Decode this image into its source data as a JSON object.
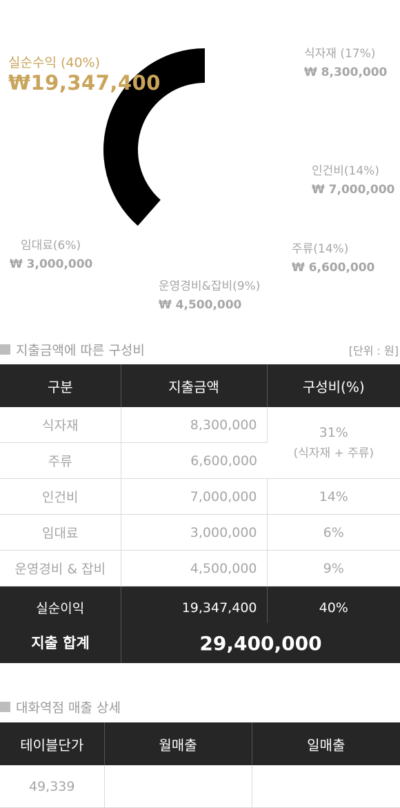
{
  "chart_data": {
    "type": "pie",
    "categories": [
      "실순수익 (40%)",
      "식자재 (17%)",
      "인건비(14%)",
      "주류(14%)",
      "운영경비&잡비(9%)",
      "임대료(6%)"
    ],
    "values": [
      19347400,
      8300000,
      7000000,
      6600000,
      4500000,
      3000000
    ],
    "labels": {
      "profit": {
        "name": "실순수익 (40%)",
        "amount": "₩19,347,400"
      },
      "food": {
        "name": "식자재 (17%)",
        "amount": "₩ 8,300,000"
      },
      "labor": {
        "name": "인건비(14%)",
        "amount": "₩ 7,000,000"
      },
      "liquor": {
        "name": "주류(14%)",
        "amount": "₩ 6,600,000"
      },
      "ops": {
        "name": "운영경비&잡비(9%)",
        "amount": "₩ 4,500,000"
      },
      "rent": {
        "name": "임대료(6%)",
        "amount": "₩ 3,000,000"
      }
    },
    "colors": {
      "profit_arc": "#000000",
      "profit_label": "#c9a45a"
    }
  },
  "expense_section": {
    "title": "지출금액에 따른 구성비",
    "unit": "[단위 : 원]",
    "headers": [
      "구분",
      "지출금액",
      "구성비(%)"
    ],
    "rows": [
      {
        "name": "식자재",
        "amount": "8,300,000"
      },
      {
        "name": "주류",
        "amount": "6,600,000"
      },
      {
        "name": "인건비",
        "amount": "7,000,000",
        "ratio": "14%"
      },
      {
        "name": "임대료",
        "amount": "3,000,000",
        "ratio": "6%"
      },
      {
        "name": "운영경비 & 잡비",
        "amount": "4,500,000",
        "ratio": "9%"
      }
    ],
    "combined_ratio": "31%",
    "combined_note": "(식자재 + 주류)",
    "profit_row": {
      "name": "실순이익",
      "amount": "19,347,400",
      "ratio": "40%"
    },
    "total": {
      "label": "지출 합계",
      "value": "29,400,000"
    }
  },
  "sales_section": {
    "title": "대화역점 매출 상세",
    "headers": [
      "테이블단가",
      "월매출",
      "일매출"
    ],
    "row": {
      "table_price": "49,339",
      "monthly": "",
      "daily": ""
    }
  }
}
